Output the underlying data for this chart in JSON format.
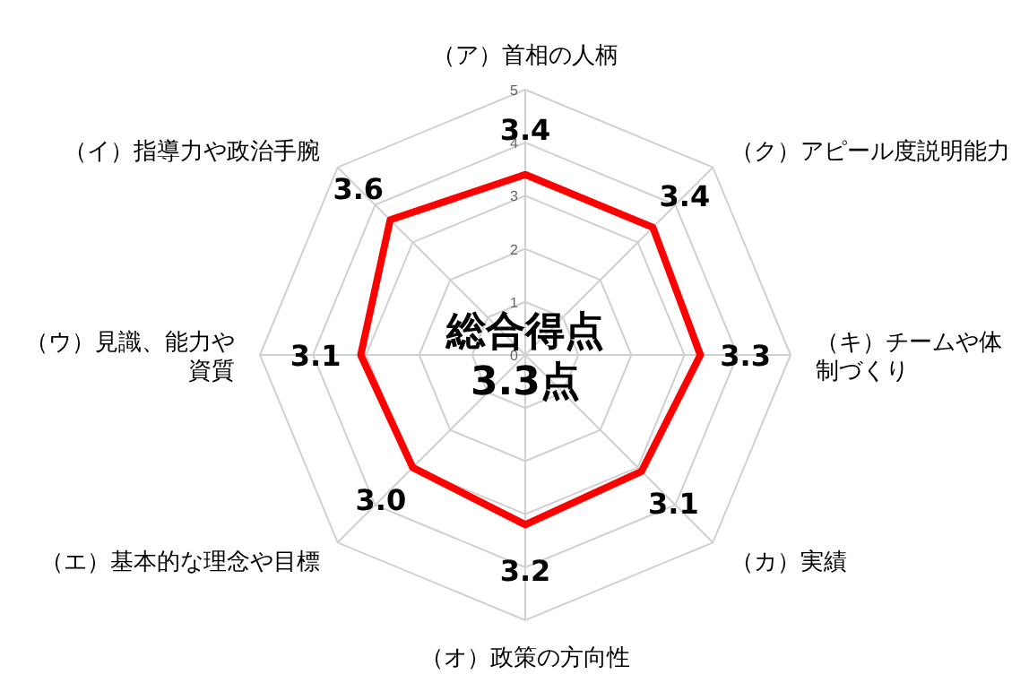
{
  "chart_data": {
    "type": "radar",
    "categories": [
      "（ア）首相の人柄",
      "（ク）アピール度説明能力",
      "（キ）チームや体制づくり",
      "（カ）実績",
      "（オ）政策の方向性",
      "（エ）基本的な理念や目標",
      "（ウ）見識、能力や資質",
      "（イ）指導力や政治手腕"
    ],
    "series": [
      {
        "color": "#ff0000",
        "values": [
          3.4,
          3.4,
          3.3,
          3.1,
          3.2,
          3.0,
          3.1,
          3.6
        ],
        "value_labels": [
          "3.4",
          "3.4",
          "3.3",
          "3.1",
          "3.2",
          "3.0",
          "3.1",
          "3.6"
        ]
      }
    ],
    "ylim": [
      0,
      5
    ],
    "yticks": [
      0,
      1,
      2,
      3,
      4,
      5
    ],
    "marker": "none",
    "line_style": "solid",
    "grid": true,
    "annotations": [
      "総合得点\n3.3点"
    ]
  }
}
